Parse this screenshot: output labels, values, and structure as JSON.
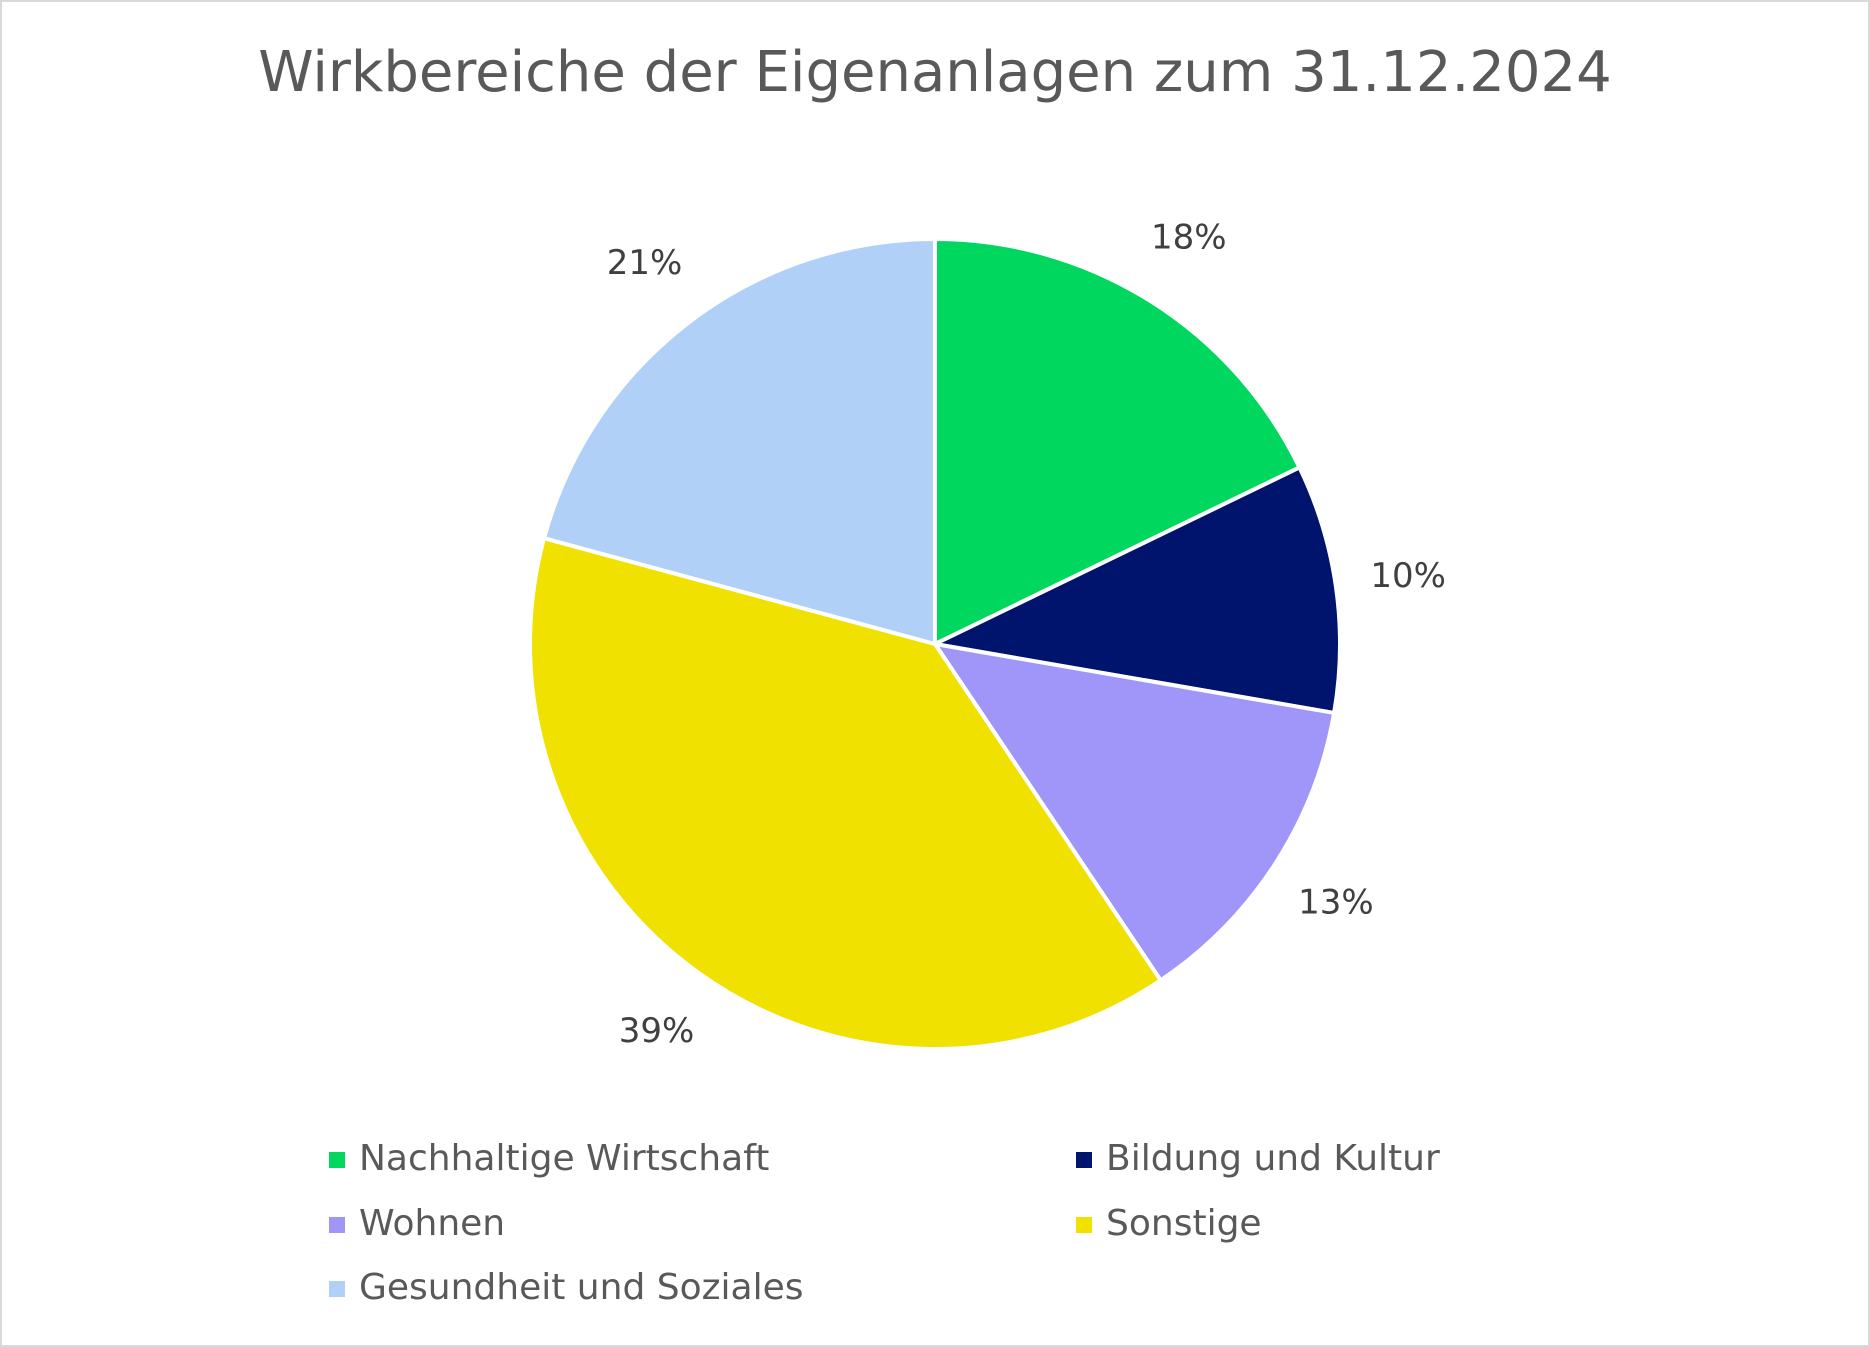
{
  "chart_data": {
    "type": "pie",
    "title": "Wirkbereiche der Eigenanlagen zum 31.12.2024",
    "categories": [
      "Nachhaltige Wirtschaft",
      "Bildung und Kultur",
      "Wohnen",
      "Sonstige",
      "Gesundheit und Soziales"
    ],
    "values": [
      18,
      10,
      13,
      39,
      21
    ],
    "value_labels": [
      "18%",
      "10%",
      "13%",
      "39%",
      "21%"
    ],
    "colors": [
      "#00d75f",
      "#00146e",
      "#a096fa",
      "#f0e100",
      "#b0d0f8"
    ]
  }
}
